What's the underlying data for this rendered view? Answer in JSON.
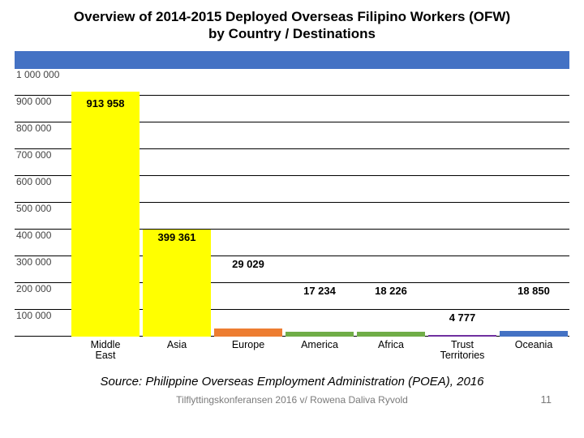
{
  "title_line1": "Overview of 2014-2015 Deployed Overseas Filipino Workers (OFW)",
  "title_line2": "by Country / Destinations",
  "blue_band_color": "#4472c4",
  "chart": {
    "type": "bar",
    "y_max": 1000000,
    "y_ticks": [
      "1 000 000",
      "900 000",
      "800 000",
      "700 000",
      "600 000",
      "500 000",
      "400 000",
      "300 000",
      "200 000",
      "100 000"
    ],
    "grid_color": "#000000",
    "plot_bg": "#f5f5f5",
    "categories": [
      {
        "label": "Middle\nEast",
        "value": 913958,
        "value_label": "913 958",
        "bar_color": "#ffff00",
        "label_row": 1
      },
      {
        "label": "Asia",
        "value": 399361,
        "value_label": "399 361",
        "bar_color": "#ffff00",
        "label_row": 6
      },
      {
        "label": "Europe",
        "value": 29029,
        "value_label": "29 029",
        "bar_color": "#ed7d31",
        "label_row": 7
      },
      {
        "label": "America",
        "value": 17234,
        "value_label": "17 234",
        "bar_color": "#70ad47",
        "label_row": 8
      },
      {
        "label": "Africa",
        "value": 18226,
        "value_label": "18 226",
        "bar_color": "#70ad47",
        "label_row": 8
      },
      {
        "label": "Trust\nTerritories",
        "value": 4777,
        "value_label": "4 777",
        "bar_color": "#7030a0",
        "label_row": 9
      },
      {
        "label": "Oceania",
        "value": 18850,
        "value_label": "18 850",
        "bar_color": "#4472c4",
        "label_row": 8
      }
    ]
  },
  "source": "Source: Philippine Overseas Employment Administration (POEA), 2016",
  "footnote": "Tilflyttingskonferansen 2016 v/ Rowena Daliva Ryvold",
  "page_number": "11"
}
